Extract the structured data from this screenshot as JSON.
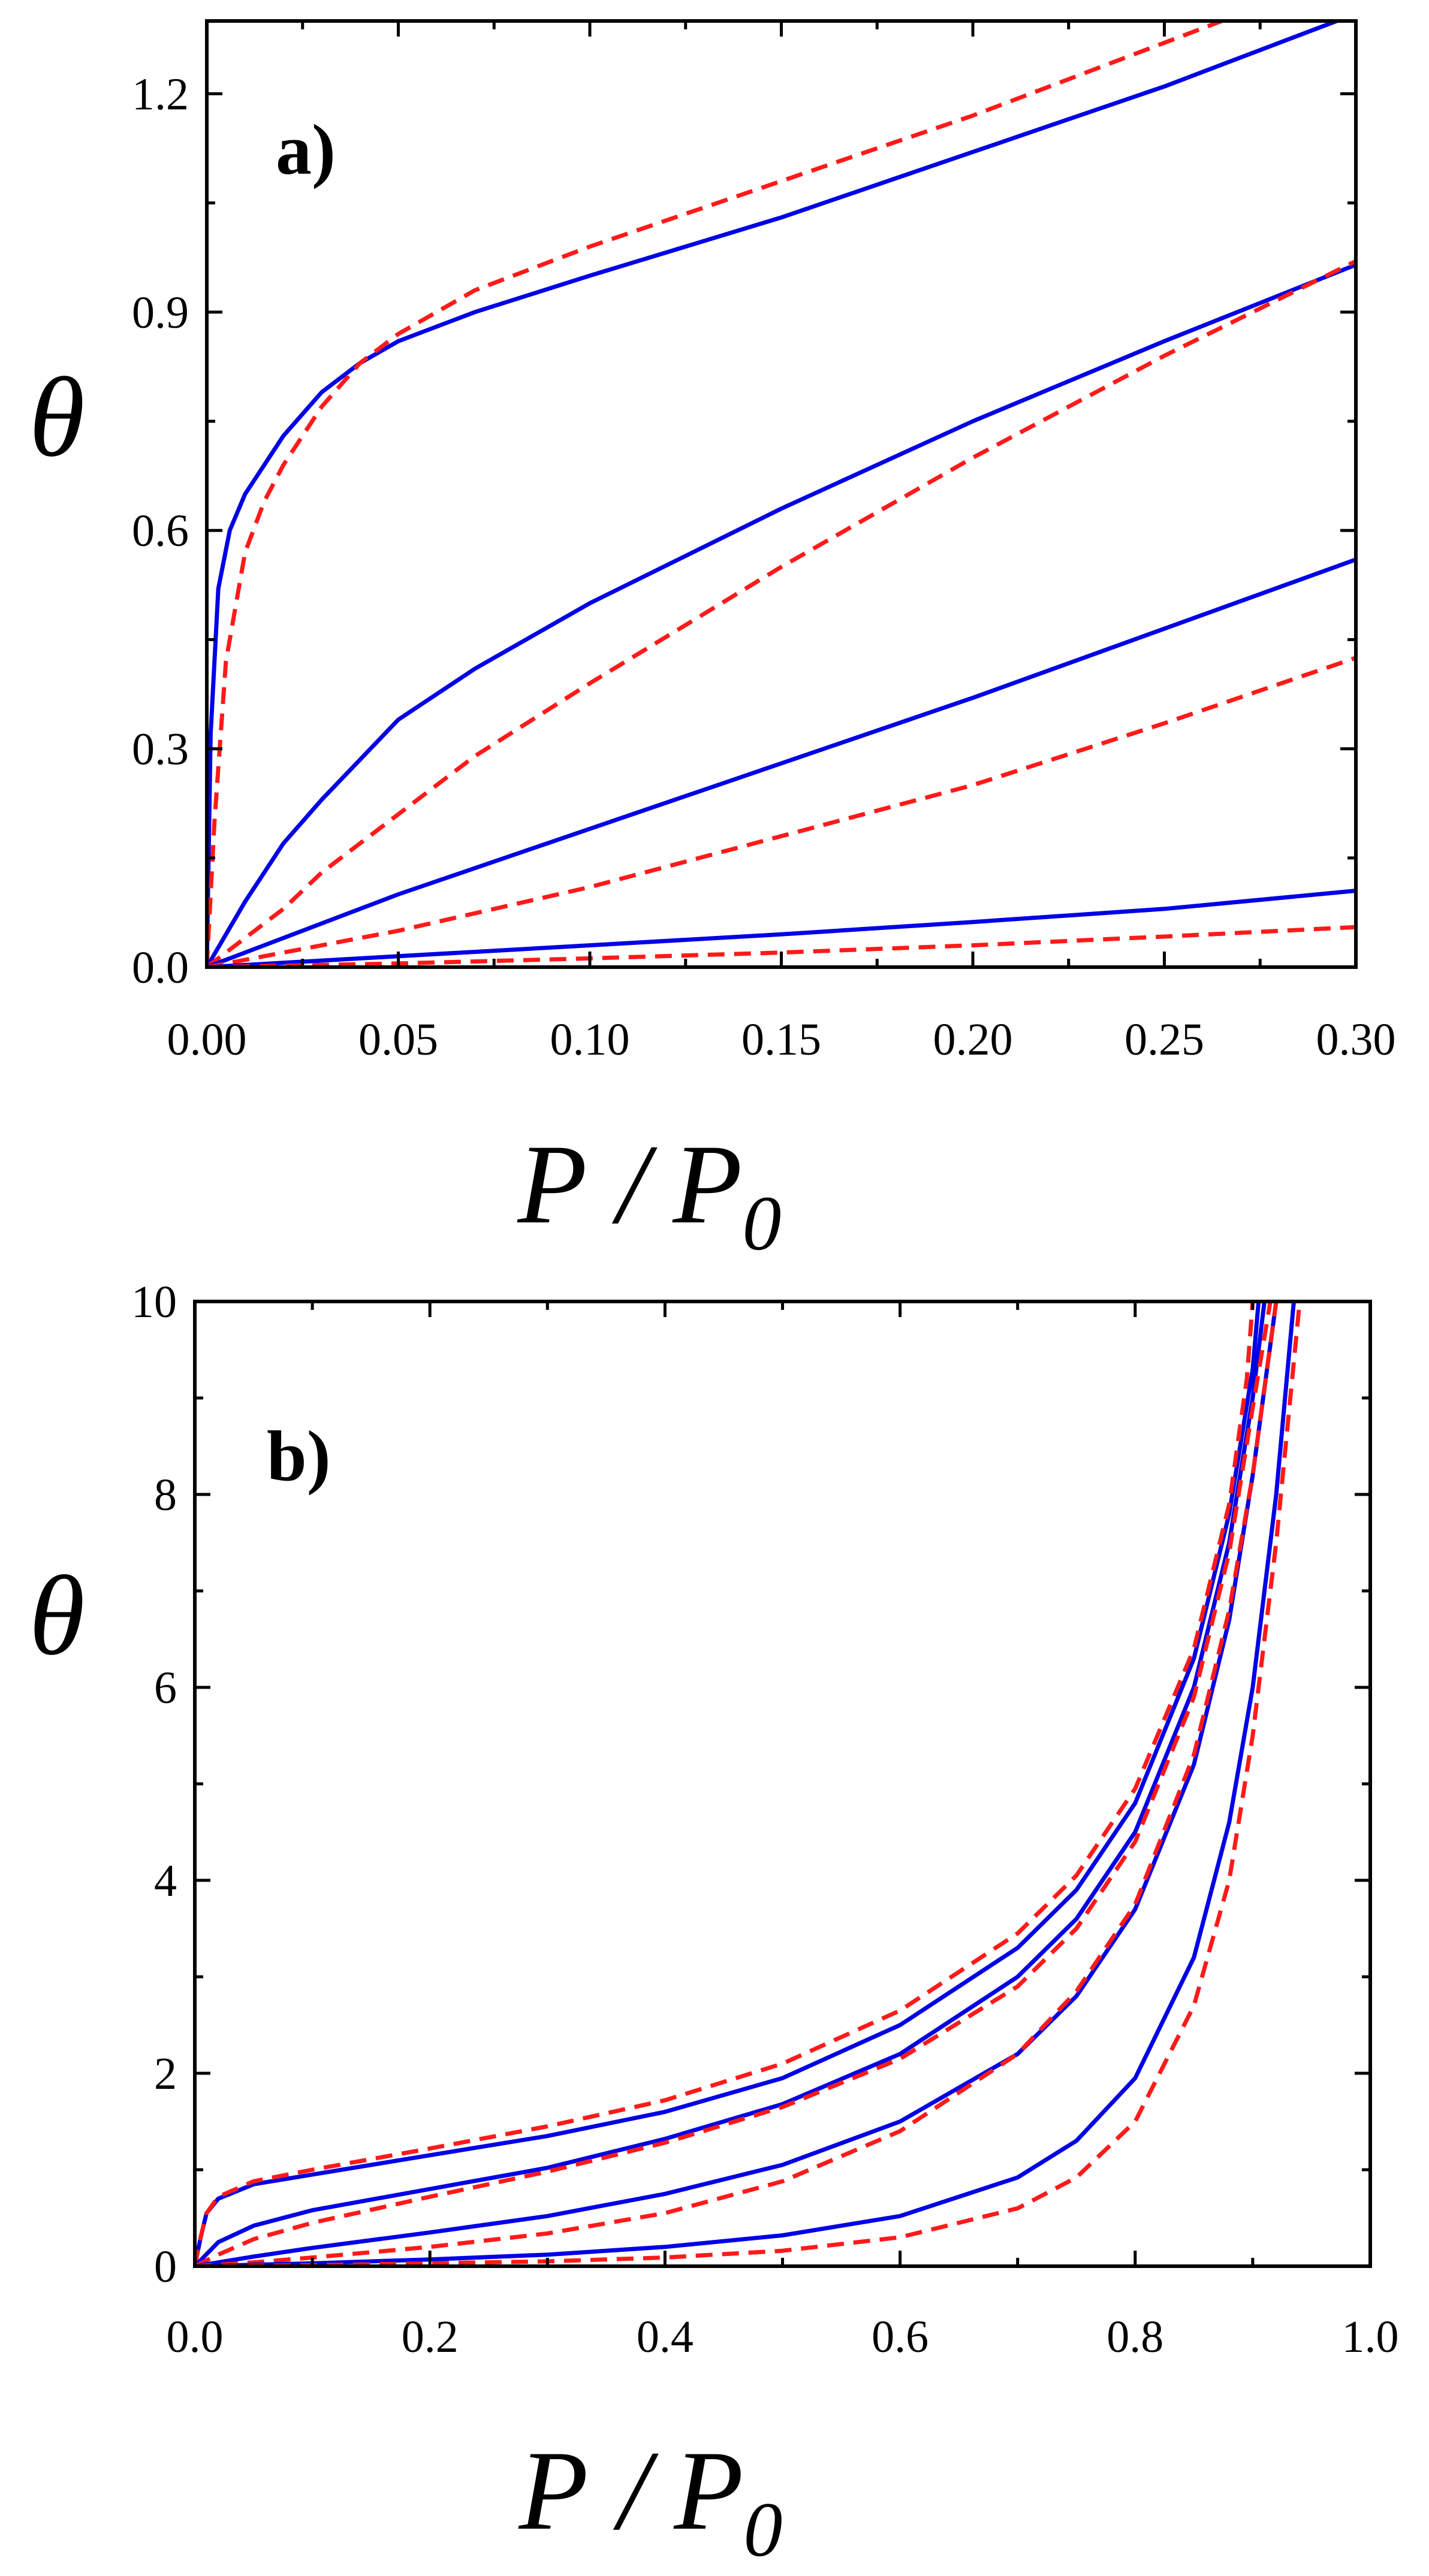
{
  "chart_data": [
    {
      "type": "line",
      "panel_label": "a)",
      "xlabel": "P / P0",
      "xlabel_main": "P",
      "xlabel_slash": "/",
      "xlabel_sub_base": "P",
      "xlabel_sub": "0",
      "ylabel": "θ",
      "xlim": [
        0,
        0.3
      ],
      "ylim": [
        0,
        1.3
      ],
      "xticks": [
        0.0,
        0.05,
        0.1,
        0.15,
        0.2,
        0.25,
        0.3
      ],
      "xtick_labels": [
        "0.00",
        "0.05",
        "0.10",
        "0.15",
        "0.20",
        "0.25",
        "0.30"
      ],
      "yticks": [
        0.0,
        0.3,
        0.6,
        0.9,
        1.2
      ],
      "ytick_labels": [
        "0.0",
        "0.3",
        "0.6",
        "0.9",
        "1.2"
      ],
      "colors": {
        "solid": "#0000e6",
        "dashed": "#ff1a1a"
      },
      "series": [
        {
          "name": "solid-1",
          "style": "solid",
          "x": [
            0,
            0.001,
            0.003,
            0.006,
            0.01,
            0.015,
            0.02,
            0.03,
            0.04,
            0.05,
            0.07,
            0.1,
            0.15,
            0.2,
            0.25,
            0.3
          ],
          "y": [
            0,
            0.32,
            0.52,
            0.6,
            0.65,
            0.69,
            0.73,
            0.79,
            0.83,
            0.86,
            0.9,
            0.95,
            1.03,
            1.12,
            1.21,
            1.31
          ]
        },
        {
          "name": "dashed-1",
          "style": "dashed",
          "x": [
            0,
            0.002,
            0.005,
            0.01,
            0.015,
            0.02,
            0.025,
            0.03,
            0.04,
            0.05,
            0.07,
            0.1,
            0.15,
            0.2,
            0.25,
            0.27
          ],
          "y": [
            0,
            0.2,
            0.42,
            0.57,
            0.64,
            0.69,
            0.73,
            0.77,
            0.83,
            0.87,
            0.93,
            0.99,
            1.08,
            1.17,
            1.27,
            1.31
          ]
        },
        {
          "name": "solid-2",
          "style": "solid",
          "x": [
            0,
            0.01,
            0.02,
            0.03,
            0.05,
            0.07,
            0.1,
            0.15,
            0.2,
            0.25,
            0.3
          ],
          "y": [
            0,
            0.09,
            0.17,
            0.23,
            0.34,
            0.41,
            0.5,
            0.63,
            0.75,
            0.86,
            0.965
          ]
        },
        {
          "name": "dashed-2",
          "style": "dashed",
          "x": [
            0,
            0.01,
            0.02,
            0.03,
            0.05,
            0.07,
            0.1,
            0.15,
            0.2,
            0.25,
            0.3
          ],
          "y": [
            0,
            0.04,
            0.08,
            0.13,
            0.21,
            0.29,
            0.39,
            0.55,
            0.7,
            0.84,
            0.97
          ]
        },
        {
          "name": "solid-3",
          "style": "solid",
          "x": [
            0,
            0.05,
            0.1,
            0.15,
            0.2,
            0.25,
            0.3
          ],
          "y": [
            0,
            0.1,
            0.19,
            0.28,
            0.37,
            0.465,
            0.56
          ]
        },
        {
          "name": "dashed-3",
          "style": "dashed",
          "x": [
            0,
            0.05,
            0.1,
            0.15,
            0.2,
            0.25,
            0.3
          ],
          "y": [
            0,
            0.05,
            0.11,
            0.18,
            0.25,
            0.335,
            0.425
          ]
        },
        {
          "name": "solid-4",
          "style": "solid",
          "x": [
            0,
            0.05,
            0.1,
            0.15,
            0.2,
            0.25,
            0.3
          ],
          "y": [
            0,
            0.015,
            0.03,
            0.045,
            0.062,
            0.08,
            0.105
          ]
        },
        {
          "name": "dashed-4",
          "style": "dashed",
          "x": [
            0,
            0.05,
            0.1,
            0.15,
            0.2,
            0.25,
            0.3
          ],
          "y": [
            0,
            0.005,
            0.012,
            0.02,
            0.03,
            0.042,
            0.055
          ]
        }
      ]
    },
    {
      "type": "line",
      "panel_label": "b)",
      "xlabel": "P / P0",
      "xlabel_main": "P",
      "xlabel_slash": "/",
      "xlabel_sub_base": "P",
      "xlabel_sub": "0",
      "ylabel": "θ",
      "xlim": [
        0,
        1.0
      ],
      "ylim": [
        0,
        10
      ],
      "xticks": [
        0.0,
        0.2,
        0.4,
        0.6,
        0.8,
        1.0
      ],
      "xtick_labels": [
        "0.0",
        "0.2",
        "0.4",
        "0.6",
        "0.8",
        "1.0"
      ],
      "yticks": [
        0,
        2,
        4,
        6,
        8,
        10
      ],
      "ytick_labels": [
        "0",
        "2",
        "4",
        "6",
        "8",
        "10"
      ],
      "colors": {
        "solid": "#0000e6",
        "dashed": "#ff1a1a"
      },
      "series": [
        {
          "name": "solid-1",
          "style": "solid",
          "x": [
            0,
            0.005,
            0.01,
            0.02,
            0.05,
            0.1,
            0.2,
            0.3,
            0.4,
            0.5,
            0.6,
            0.7,
            0.75,
            0.8,
            0.85,
            0.88,
            0.9,
            0.905
          ],
          "y": [
            0,
            0.3,
            0.55,
            0.7,
            0.85,
            0.95,
            1.15,
            1.35,
            1.6,
            1.95,
            2.5,
            3.3,
            3.9,
            4.8,
            6.3,
            7.8,
            9.3,
            10
          ]
        },
        {
          "name": "dashed-1",
          "style": "dashed",
          "x": [
            0,
            0.005,
            0.01,
            0.02,
            0.05,
            0.1,
            0.2,
            0.3,
            0.4,
            0.5,
            0.6,
            0.7,
            0.75,
            0.8,
            0.85,
            0.88,
            0.895,
            0.9
          ],
          "y": [
            0,
            0.3,
            0.55,
            0.72,
            0.88,
            1.0,
            1.22,
            1.45,
            1.72,
            2.1,
            2.65,
            3.45,
            4.05,
            4.95,
            6.4,
            7.9,
            9.2,
            10
          ]
        },
        {
          "name": "solid-2",
          "style": "solid",
          "x": [
            0,
            0.02,
            0.05,
            0.1,
            0.2,
            0.3,
            0.4,
            0.5,
            0.6,
            0.7,
            0.75,
            0.8,
            0.85,
            0.88,
            0.9,
            0.91
          ],
          "y": [
            0,
            0.25,
            0.42,
            0.58,
            0.8,
            1.02,
            1.32,
            1.68,
            2.2,
            3.0,
            3.6,
            4.5,
            6.0,
            7.5,
            9.0,
            10
          ]
        },
        {
          "name": "dashed-2",
          "style": "dashed",
          "x": [
            0,
            0.02,
            0.05,
            0.1,
            0.2,
            0.3,
            0.4,
            0.5,
            0.6,
            0.7,
            0.75,
            0.8,
            0.85,
            0.88,
            0.9,
            0.915
          ],
          "y": [
            0,
            0.12,
            0.28,
            0.45,
            0.72,
            0.98,
            1.28,
            1.65,
            2.15,
            2.9,
            3.5,
            4.4,
            5.9,
            7.4,
            8.9,
            10
          ]
        },
        {
          "name": "solid-3",
          "style": "solid",
          "x": [
            0,
            0.05,
            0.1,
            0.2,
            0.3,
            0.4,
            0.5,
            0.6,
            0.7,
            0.75,
            0.8,
            0.85,
            0.88,
            0.9,
            0.91,
            0.92
          ],
          "y": [
            0,
            0.1,
            0.19,
            0.35,
            0.52,
            0.75,
            1.05,
            1.5,
            2.2,
            2.8,
            3.7,
            5.2,
            6.7,
            8.2,
            9.1,
            10
          ]
        },
        {
          "name": "dashed-3",
          "style": "dashed",
          "x": [
            0,
            0.05,
            0.1,
            0.2,
            0.3,
            0.4,
            0.5,
            0.6,
            0.7,
            0.75,
            0.8,
            0.85,
            0.88,
            0.9,
            0.91,
            0.92
          ],
          "y": [
            0,
            0.04,
            0.09,
            0.2,
            0.34,
            0.55,
            0.88,
            1.4,
            2.2,
            2.85,
            3.75,
            5.3,
            6.8,
            8.2,
            9.1,
            10
          ]
        },
        {
          "name": "solid-4",
          "style": "solid",
          "x": [
            0,
            0.1,
            0.2,
            0.3,
            0.4,
            0.5,
            0.6,
            0.7,
            0.75,
            0.8,
            0.85,
            0.88,
            0.9,
            0.92,
            0.935
          ],
          "y": [
            0,
            0.03,
            0.07,
            0.12,
            0.2,
            0.32,
            0.52,
            0.92,
            1.3,
            1.95,
            3.2,
            4.6,
            6.0,
            8.0,
            10
          ]
        },
        {
          "name": "dashed-4",
          "style": "dashed",
          "x": [
            0,
            0.1,
            0.2,
            0.3,
            0.4,
            0.5,
            0.6,
            0.7,
            0.75,
            0.8,
            0.85,
            0.88,
            0.9,
            0.92,
            0.94
          ],
          "y": [
            0,
            0.01,
            0.03,
            0.05,
            0.09,
            0.16,
            0.3,
            0.6,
            0.92,
            1.5,
            2.7,
            4.0,
            5.5,
            7.5,
            10
          ]
        }
      ]
    }
  ]
}
